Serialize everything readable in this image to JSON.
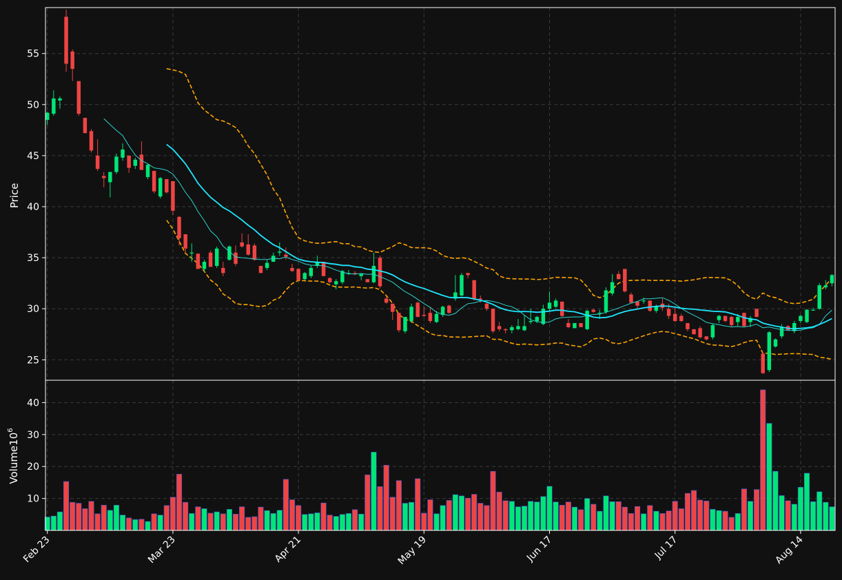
{
  "chart_data": {
    "type": "candlestick",
    "style": {
      "background": "#111111",
      "up_color": "#00e676",
      "down_color": "#ef4444",
      "grid_color": "#3a3a3a",
      "text_color": "#ffffff",
      "ma_fast_color": "#2dd4cf",
      "ma_slow_color": "#1fe6ff",
      "band_color": "#ffa500",
      "grid": true
    },
    "price_panel": {
      "ylabel": "Price",
      "ylim": [
        23,
        59.5
      ],
      "yticks": [
        25,
        30,
        35,
        40,
        45,
        50,
        55
      ]
    },
    "volume_panel": {
      "ylabel": "Volume",
      "ylabel_exponent": "10",
      "ylabel_power": "6",
      "ylim": [
        0,
        47
      ],
      "yticks": [
        10,
        20,
        30,
        40
      ]
    },
    "x_ticks": [
      {
        "index": 0,
        "label": "Feb 23"
      },
      {
        "index": 20,
        "label": "Mar 23"
      },
      {
        "index": 40,
        "label": "Apr 21"
      },
      {
        "index": 60,
        "label": "May 19"
      },
      {
        "index": 80,
        "label": "Jun 17"
      },
      {
        "index": 100,
        "label": "Jul 17"
      },
      {
        "index": 120,
        "label": "Aug 14"
      }
    ],
    "x_range": [
      -0.3,
      125.5
    ],
    "candles": [
      [
        48.5,
        49.3,
        48.0,
        49.2,
        4.2
      ],
      [
        49.1,
        51.4,
        48.9,
        50.6,
        4.5
      ],
      [
        50.4,
        50.8,
        49.6,
        50.6,
        5.8
      ],
      [
        58.6,
        59.3,
        53.2,
        54.0,
        15.3
      ],
      [
        55.2,
        55.4,
        52.3,
        53.5,
        8.8
      ],
      [
        52.3,
        52.3,
        48.9,
        49.1,
        8.5
      ],
      [
        48.7,
        48.7,
        47.3,
        47.2,
        6.8
      ],
      [
        47.4,
        47.6,
        45.3,
        45.5,
        9.1
      ],
      [
        45.0,
        46.6,
        43.5,
        43.7,
        5.2
      ],
      [
        43.0,
        43.4,
        41.9,
        42.8,
        7.9
      ],
      [
        42.4,
        43.4,
        40.9,
        43.4,
        6.3
      ],
      [
        43.4,
        45.2,
        43.2,
        44.9,
        7.9
      ],
      [
        44.8,
        46.2,
        44.5,
        45.6,
        4.8
      ],
      [
        45.0,
        45.0,
        43.3,
        43.8,
        3.9
      ],
      [
        44.0,
        44.8,
        43.7,
        44.6,
        3.4
      ],
      [
        45.1,
        46.4,
        43.7,
        43.6,
        3.5
      ],
      [
        42.9,
        44.2,
        42.7,
        44.1,
        2.8
      ],
      [
        43.5,
        43.5,
        41.3,
        41.5,
        5.2
      ],
      [
        41.0,
        42.9,
        40.8,
        42.8,
        4.8
      ],
      [
        42.7,
        42.7,
        41.3,
        41.4,
        7.8
      ],
      [
        42.5,
        42.5,
        39.2,
        39.6,
        10.4
      ],
      [
        39.0,
        39.1,
        36.2,
        36.9,
        17.6
      ],
      [
        37.3,
        37.3,
        35.5,
        35.9,
        8.8
      ],
      [
        35.5,
        36.4,
        34.6,
        35.5,
        5.3
      ],
      [
        35.4,
        35.4,
        33.9,
        33.9,
        7.4
      ],
      [
        33.9,
        34.8,
        33.6,
        34.6,
        6.8
      ],
      [
        35.5,
        35.7,
        34.1,
        34.1,
        5.4
      ],
      [
        34.2,
        36.1,
        34.0,
        35.9,
        5.8
      ],
      [
        34.0,
        34.6,
        33.2,
        33.5,
        5.2
      ],
      [
        34.8,
        36.2,
        34.7,
        36.1,
        6.6
      ],
      [
        35.5,
        36.2,
        34.2,
        34.4,
        5.1
      ],
      [
        36.5,
        37.4,
        36.0,
        36.1,
        7.4
      ],
      [
        36.3,
        37.3,
        35.2,
        35.3,
        4.1
      ],
      [
        36.2,
        36.4,
        34.7,
        34.8,
        4.3
      ],
      [
        34.2,
        34.2,
        33.5,
        33.5,
        7.3
      ],
      [
        34.0,
        34.8,
        33.8,
        34.5,
        6.2
      ],
      [
        34.6,
        35.5,
        34.6,
        35.2,
        5.3
      ],
      [
        35.5,
        36.5,
        35.2,
        35.6,
        6.3
      ],
      [
        35.3,
        36.0,
        34.8,
        35.1,
        16.0
      ],
      [
        34.0,
        34.4,
        33.6,
        33.7,
        9.6
      ],
      [
        33.9,
        34.0,
        32.7,
        32.8,
        7.8
      ],
      [
        32.9,
        33.6,
        32.8,
        33.5,
        5.0
      ],
      [
        33.2,
        34.3,
        33.0,
        34.0,
        5.2
      ],
      [
        34.2,
        35.2,
        34.0,
        34.6,
        5.5
      ],
      [
        34.6,
        34.6,
        33.2,
        33.2,
        8.6
      ],
      [
        33.0,
        33.1,
        32.5,
        32.6,
        4.8
      ],
      [
        32.4,
        32.9,
        31.9,
        32.7,
        4.4
      ],
      [
        32.6,
        33.8,
        32.4,
        33.7,
        5.0
      ],
      [
        33.4,
        33.8,
        33.3,
        33.5,
        5.3
      ],
      [
        33.5,
        33.7,
        33.3,
        33.4,
        6.5
      ],
      [
        33.2,
        33.5,
        32.8,
        33.4,
        5.1
      ],
      [
        32.9,
        32.9,
        32.6,
        32.6,
        17.4
      ],
      [
        32.6,
        35.5,
        32.5,
        34.2,
        24.5
      ],
      [
        35.0,
        35.2,
        32.0,
        32.2,
        13.7
      ],
      [
        31.0,
        31.3,
        30.5,
        30.6,
        20.4
      ],
      [
        30.5,
        30.5,
        28.9,
        29.7,
        10.4
      ],
      [
        29.6,
        29.6,
        27.7,
        27.9,
        15.6
      ],
      [
        27.8,
        29.2,
        27.6,
        29.2,
        8.5
      ],
      [
        28.8,
        30.5,
        28.6,
        30.2,
        8.8
      ],
      [
        30.6,
        30.7,
        29.2,
        29.2,
        16.2
      ],
      [
        29.4,
        30.2,
        29.2,
        29.3,
        5.4
      ],
      [
        29.6,
        30.2,
        28.6,
        28.8,
        9.6
      ],
      [
        28.7,
        29.8,
        28.6,
        29.5,
        5.2
      ],
      [
        29.4,
        30.3,
        29.2,
        30.2,
        7.8
      ],
      [
        30.3,
        30.4,
        29.5,
        29.6,
        9.4
      ],
      [
        31.0,
        33.3,
        30.8,
        31.6,
        11.2
      ],
      [
        31.3,
        33.5,
        31.2,
        33.3,
        10.8
      ],
      [
        33.5,
        33.5,
        33.0,
        33.3,
        10.1
      ],
      [
        32.8,
        32.8,
        30.8,
        31.0,
        11.3
      ],
      [
        31.0,
        31.3,
        30.6,
        30.9,
        8.5
      ],
      [
        30.5,
        30.6,
        29.8,
        30.0,
        7.8
      ],
      [
        30.0,
        30.0,
        27.6,
        27.8,
        18.5
      ],
      [
        28.3,
        28.7,
        27.8,
        28.0,
        12.0
      ],
      [
        28.0,
        28.1,
        27.6,
        27.9,
        9.3
      ],
      [
        27.9,
        28.4,
        27.6,
        28.2,
        9.1
      ],
      [
        28.0,
        29.0,
        27.9,
        28.3,
        7.4
      ],
      [
        27.9,
        29.4,
        27.8,
        28.3,
        7.6
      ],
      [
        28.7,
        30.0,
        28.5,
        28.8,
        9.1
      ],
      [
        28.8,
        29.3,
        28.6,
        29.2,
        8.9
      ],
      [
        28.5,
        30.4,
        28.4,
        30.0,
        10.6
      ],
      [
        30.0,
        31.7,
        29.8,
        30.6,
        13.8
      ],
      [
        30.2,
        31.0,
        30.1,
        30.8,
        8.9
      ],
      [
        30.7,
        30.7,
        29.2,
        29.3,
        7.9
      ],
      [
        28.6,
        29.0,
        28.1,
        28.2,
        8.9
      ],
      [
        28.1,
        28.6,
        28.1,
        28.6,
        7.3
      ],
      [
        28.6,
        28.6,
        28.2,
        28.2,
        6.5
      ],
      [
        28.0,
        29.9,
        27.9,
        29.8,
        10.0
      ],
      [
        29.9,
        30.0,
        29.6,
        29.7,
        8.2
      ],
      [
        29.6,
        29.9,
        29.0,
        29.6,
        6.0
      ],
      [
        29.7,
        32.1,
        29.5,
        31.8,
        10.8
      ],
      [
        31.5,
        33.4,
        31.3,
        32.6,
        9.0
      ],
      [
        33.4,
        33.7,
        32.9,
        32.9,
        9.0
      ],
      [
        33.9,
        33.9,
        31.6,
        31.7,
        7.3
      ],
      [
        31.4,
        31.6,
        30.6,
        30.6,
        5.3
      ],
      [
        30.7,
        30.7,
        30.0,
        30.3,
        7.5
      ],
      [
        30.8,
        31.1,
        30.5,
        30.8,
        5.2
      ],
      [
        30.8,
        30.8,
        29.7,
        29.8,
        7.8
      ],
      [
        29.8,
        30.4,
        29.6,
        30.2,
        6.0
      ],
      [
        30.5,
        31.0,
        29.8,
        30.1,
        5.3
      ],
      [
        30.0,
        30.5,
        29.0,
        29.3,
        6.1
      ],
      [
        29.5,
        30.2,
        28.7,
        28.8,
        9.1
      ],
      [
        29.3,
        29.5,
        28.7,
        28.8,
        6.8
      ],
      [
        28.6,
        28.6,
        27.8,
        28.0,
        11.6
      ],
      [
        28.0,
        28.0,
        27.5,
        27.5,
        12.5
      ],
      [
        28.1,
        28.3,
        27.1,
        27.2,
        9.5
      ],
      [
        27.3,
        27.3,
        26.9,
        27.0,
        9.2
      ],
      [
        27.2,
        28.5,
        27.0,
        28.4,
        6.6
      ],
      [
        28.9,
        29.4,
        28.6,
        29.3,
        6.2
      ],
      [
        29.3,
        29.3,
        28.7,
        28.8,
        6.0
      ],
      [
        29.2,
        29.3,
        28.2,
        28.4,
        4.1
      ],
      [
        28.7,
        29.5,
        28.3,
        29.2,
        5.3
      ],
      [
        29.6,
        29.6,
        28.2,
        28.3,
        13.0
      ],
      [
        28.7,
        29.3,
        28.2,
        29.1,
        9.1
      ],
      [
        30.0,
        30.0,
        29.2,
        29.2,
        12.8
      ],
      [
        25.6,
        25.8,
        23.6,
        23.7,
        44.0
      ],
      [
        24.0,
        27.8,
        23.8,
        27.7,
        33.5
      ],
      [
        26.3,
        27.1,
        26.2,
        27.0,
        18.5
      ],
      [
        27.3,
        28.5,
        27.1,
        28.2,
        10.9
      ],
      [
        28.3,
        28.4,
        27.9,
        27.9,
        9.3
      ],
      [
        27.8,
        28.8,
        27.6,
        28.6,
        8.2
      ],
      [
        28.8,
        29.4,
        28.6,
        29.3,
        13.5
      ],
      [
        28.7,
        30.0,
        28.6,
        29.9,
        17.9
      ],
      [
        29.9,
        30.1,
        29.8,
        29.9,
        9.0
      ],
      [
        30.0,
        32.5,
        29.9,
        32.3,
        12.1
      ],
      [
        32.1,
        32.8,
        31.9,
        32.3,
        8.8
      ],
      [
        32.5,
        33.4,
        32.2,
        33.3,
        7.4
      ]
    ]
  }
}
